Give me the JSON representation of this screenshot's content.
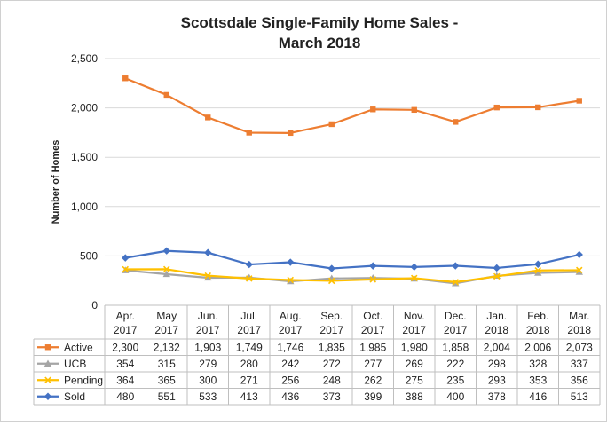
{
  "chart_data": {
    "type": "line",
    "title_line1": "Scottsdale Single-Family Home Sales -",
    "title_line2": "March 2018",
    "ylabel": "Number of Homes",
    "xlabel": "",
    "ylim": [
      0,
      2500
    ],
    "y_ticks": [
      "0",
      "500",
      "1,000",
      "1,500",
      "2,000",
      "2,500"
    ],
    "y_tick_values": [
      0,
      500,
      1000,
      1500,
      2000,
      2500
    ],
    "grid": true,
    "categories": [
      [
        "Apr.",
        "2017"
      ],
      [
        "May",
        "2017"
      ],
      [
        "Jun.",
        "2017"
      ],
      [
        "Jul.",
        "2017"
      ],
      [
        "Aug.",
        "2017"
      ],
      [
        "Sep.",
        "2017"
      ],
      [
        "Oct.",
        "2017"
      ],
      [
        "Nov.",
        "2017"
      ],
      [
        "Dec.",
        "2017"
      ],
      [
        "Jan.",
        "2018"
      ],
      [
        "Feb.",
        "2018"
      ],
      [
        "Mar.",
        "2018"
      ]
    ],
    "series": [
      {
        "name": "Active",
        "color": "#ED7D31",
        "marker": "square",
        "values": [
          2300,
          2132,
          1903,
          1749,
          1746,
          1835,
          1985,
          1980,
          1858,
          2004,
          2006,
          2073
        ],
        "labels": [
          "2,300",
          "2,132",
          "1,903",
          "1,749",
          "1,746",
          "1,835",
          "1,985",
          "1,980",
          "1,858",
          "2,004",
          "2,006",
          "2,073"
        ]
      },
      {
        "name": "UCB",
        "color": "#A5A5A5",
        "marker": "triangle",
        "values": [
          354,
          315,
          279,
          280,
          242,
          272,
          277,
          269,
          222,
          298,
          328,
          337
        ],
        "labels": [
          "354",
          "315",
          "279",
          "280",
          "242",
          "272",
          "277",
          "269",
          "222",
          "298",
          "328",
          "337"
        ]
      },
      {
        "name": "Pending",
        "color": "#FFC000",
        "marker": "x",
        "values": [
          364,
          365,
          300,
          271,
          256,
          248,
          262,
          275,
          235,
          293,
          353,
          356
        ],
        "labels": [
          "364",
          "365",
          "300",
          "271",
          "256",
          "248",
          "262",
          "275",
          "235",
          "293",
          "353",
          "356"
        ]
      },
      {
        "name": "Sold",
        "color": "#4472C4",
        "marker": "diamond",
        "values": [
          480,
          551,
          533,
          413,
          436,
          373,
          399,
          388,
          400,
          378,
          416,
          513
        ],
        "labels": [
          "480",
          "551",
          "533",
          "413",
          "436",
          "373",
          "399",
          "388",
          "400",
          "378",
          "416",
          "513"
        ]
      }
    ]
  }
}
